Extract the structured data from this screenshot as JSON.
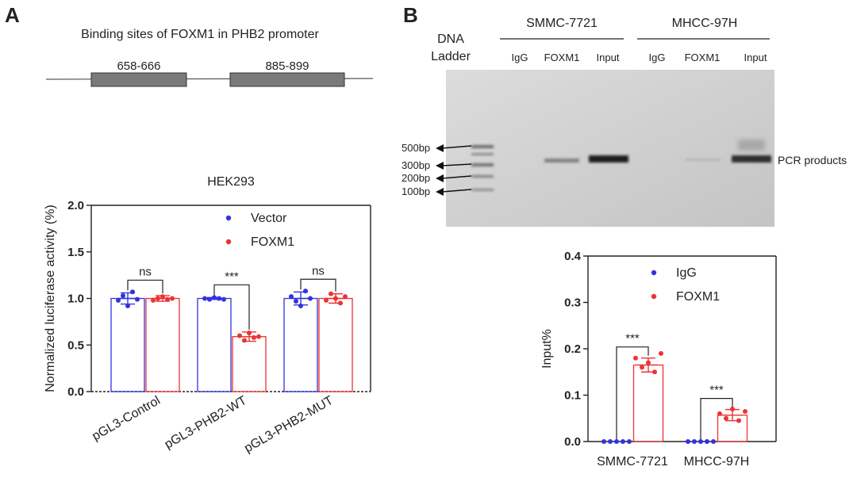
{
  "panel_a": {
    "label": "A",
    "promoter": {
      "title": "Binding sites of FOXM1 in PHB2 promoter",
      "sites": [
        "658-666",
        "885-899"
      ]
    }
  },
  "panel_b": {
    "label": "B",
    "gel": {
      "ladder_label": [
        "DNA",
        "Ladder"
      ],
      "cell_lines": [
        "SMMC-7721",
        "MHCC-97H"
      ],
      "lanes": [
        "IgG",
        "FOXM1",
        "Input",
        "IgG",
        "FOXM1",
        "Input"
      ],
      "markers": [
        "500bp",
        "300bp",
        "200bp",
        "100bp"
      ],
      "product_label": "PCR products"
    }
  },
  "chart_data": [
    {
      "type": "bar",
      "title": "HEK293",
      "xlabel": "",
      "ylabel": "Normalized luciferase activity (%)",
      "ylim": [
        0,
        2.0
      ],
      "yticks": [
        "0.0",
        "0.5",
        "1.0",
        "1.5",
        "2.0"
      ],
      "categories": [
        "pGL3-Control",
        "pGL3-PHB2-WT",
        "pGL3-PHB2-MUT"
      ],
      "legend_position": "top-right",
      "series": [
        {
          "name": "Vector",
          "color": "#3333dd",
          "values": [
            1.0,
            1.0,
            1.0
          ],
          "errors": [
            0.06,
            0.01,
            0.07
          ],
          "points": [
            [
              0.98,
              1.03,
              0.92,
              1.07,
              0.99
            ],
            [
              1.0,
              0.99,
              1.01,
              1.0,
              0.99
            ],
            [
              1.02,
              0.97,
              0.92,
              1.08,
              1.0
            ]
          ]
        },
        {
          "name": "FOXM1",
          "color": "#ee3333",
          "values": [
            1.0,
            0.59,
            1.0
          ],
          "errors": [
            0.03,
            0.05,
            0.05
          ],
          "points": [
            [
              0.98,
              1.0,
              1.02,
              0.99,
              1.0
            ],
            [
              0.6,
              0.55,
              0.63,
              0.58,
              0.59
            ],
            [
              0.98,
              1.05,
              1.0,
              0.95,
              1.02
            ]
          ]
        }
      ],
      "significance": [
        "ns",
        "***",
        "ns"
      ]
    },
    {
      "type": "bar",
      "title": "",
      "xlabel": "",
      "ylabel": "Input%",
      "ylim": [
        0,
        0.4
      ],
      "yticks": [
        "0.0",
        "0.1",
        "0.2",
        "0.3",
        "0.4"
      ],
      "categories": [
        "SMMC-7721",
        "MHCC-97H"
      ],
      "legend_position": "top-center",
      "series": [
        {
          "name": "IgG",
          "color": "#3333dd",
          "values": [
            0.0,
            0.0
          ],
          "errors": [
            0,
            0
          ],
          "points": [
            [
              0,
              0,
              0,
              0,
              0
            ],
            [
              0,
              0,
              0,
              0,
              0
            ]
          ]
        },
        {
          "name": "FOXM1",
          "color": "#ee3333",
          "values": [
            0.165,
            0.057
          ],
          "errors": [
            0.015,
            0.012
          ],
          "points": [
            [
              0.18,
              0.16,
              0.17,
              0.15,
              0.19
            ],
            [
              0.06,
              0.05,
              0.07,
              0.045,
              0.065
            ]
          ]
        }
      ],
      "significance": [
        "***",
        "***"
      ]
    }
  ]
}
